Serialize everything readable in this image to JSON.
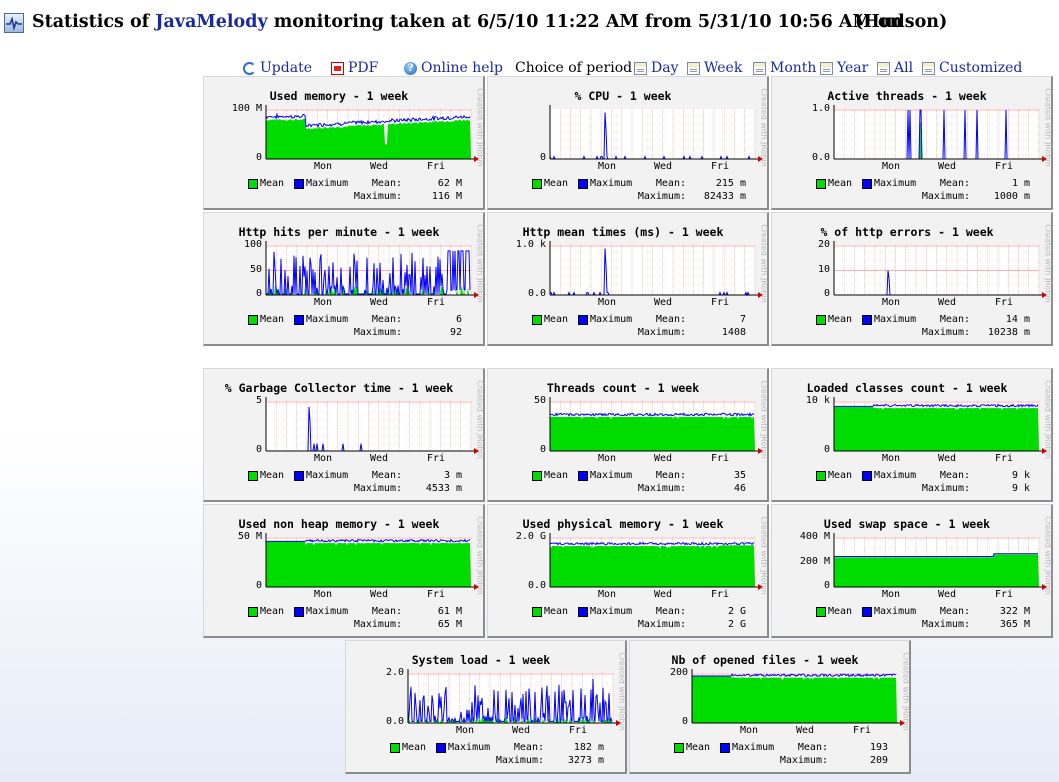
{
  "page": {
    "title_prefix": "Statistics of",
    "brand": "JavaMelody",
    "title_middle": "monitoring taken at 6/5/10 11:22 AM from 5/31/10 10:56 AM on",
    "host": "(Hudson)"
  },
  "toolbar": {
    "update": "Update",
    "pdf": "PDF",
    "help": "Online help",
    "period_label": "Choice of period :",
    "periods": [
      "Day",
      "Week",
      "Month",
      "Year",
      "All",
      "Customized"
    ]
  },
  "colors": {
    "mean": "#00dc00",
    "max": "#0000ff",
    "grid": "#ff9999",
    "axis_arrow": "#cc0000"
  },
  "legend": {
    "mean": "Mean",
    "max": "Maximum",
    "mean_k": "Mean:",
    "max_k": "Maximum:"
  },
  "watermark": "Created with JRobin",
  "x_labels": [
    "Mon",
    "Wed",
    "Fri"
  ],
  "charts": [
    {
      "title": "Used memory - 1 week",
      "y_ticks": [
        "0",
        "100 M"
      ],
      "mean": "62 M",
      "max": "116 M",
      "kind": "mem",
      "level": 0.62
    },
    {
      "title": "% CPU - 1 week",
      "y_ticks": [
        "0"
      ],
      "mean": "215 m",
      "max": "82433 m",
      "kind": "spiky_low",
      "level": 0.0
    },
    {
      "title": "Active threads - 1 week",
      "y_ticks": [
        "0.0",
        "1.0"
      ],
      "mean": "1 m",
      "max": "1000 m",
      "kind": "bars",
      "level": 0.0
    },
    {
      "title": "Http hits per minute - 1 week",
      "y_ticks": [
        "0",
        "50",
        "100"
      ],
      "mean": "6",
      "max": "92",
      "kind": "hits",
      "level": 0.06
    },
    {
      "title": "Http mean times (ms) - 1 week",
      "y_ticks": [
        "0.0",
        "1.0 k"
      ],
      "mean": "7",
      "max": "1408",
      "kind": "spiky_low",
      "level": 0.0
    },
    {
      "title": "% of http errors - 1 week",
      "y_ticks": [
        "0",
        "10",
        "20"
      ],
      "mean": "14 m",
      "max": "10238 m",
      "kind": "single",
      "level": 0.0
    },
    {
      "title": "% Garbage Collector time - 1 week",
      "y_ticks": [
        "0",
        "5"
      ],
      "mean": "3 m",
      "max": "4533 m",
      "kind": "gc",
      "level": 0.0
    },
    {
      "title": "Threads count - 1 week",
      "y_ticks": [
        "0",
        "50"
      ],
      "mean": "35",
      "max": "46",
      "kind": "flat",
      "level": 0.7
    },
    {
      "title": "Loaded classes count - 1 week",
      "y_ticks": [
        "0",
        "10 k"
      ],
      "mean": "9 k",
      "max": "9 k",
      "kind": "flat",
      "level": 0.88
    },
    {
      "title": "Used non heap memory - 1 week",
      "y_ticks": [
        "0",
        "50 M"
      ],
      "mean": "61 M",
      "max": "65 M",
      "kind": "flat",
      "level": 0.9
    },
    {
      "title": "Used physical memory - 1 week",
      "y_ticks": [
        "0.0",
        "2.0 G"
      ],
      "mean": "2 G",
      "max": "2 G",
      "kind": "flat",
      "level": 0.84
    },
    {
      "title": "Used swap space - 1 week",
      "y_ticks": [
        "0",
        "200 M",
        "400 M"
      ],
      "mean": "322 M",
      "max": "365 M",
      "kind": "step",
      "level": 0.78
    },
    {
      "title": "System load - 1 week",
      "y_ticks": [
        "0.0",
        "2.0"
      ],
      "mean": "182 m",
      "max": "3273 m",
      "kind": "load",
      "level": 0.05
    },
    {
      "title": "Nb of opened files - 1 week",
      "y_ticks": [
        "0",
        "200"
      ],
      "mean": "193",
      "max": "209",
      "kind": "flat",
      "level": 0.93
    }
  ]
}
